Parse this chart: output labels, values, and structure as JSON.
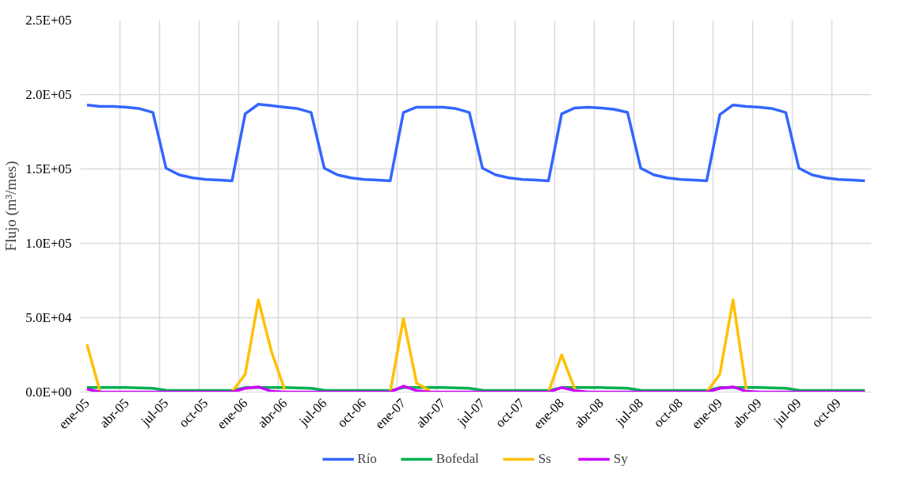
{
  "chart_data": {
    "type": "line",
    "ylabel": "Flujo (m³/mes)",
    "categories": [
      "ene-05",
      null,
      null,
      "abr-05",
      null,
      null,
      "jul-05",
      null,
      null,
      "oct-05",
      null,
      null,
      "ene-06",
      null,
      null,
      "abr-06",
      null,
      null,
      "jul-06",
      null,
      null,
      "oct-06",
      null,
      null,
      "ene-07",
      null,
      null,
      "abr-07",
      null,
      null,
      "jul-07",
      null,
      null,
      "oct-07",
      null,
      null,
      "ene-08",
      null,
      null,
      "abr-08",
      null,
      null,
      "jul-08",
      null,
      null,
      "oct-08",
      null,
      null,
      "ene-09",
      null,
      null,
      "abr-09",
      null,
      null,
      "jul-09",
      null,
      null,
      "oct-09",
      null,
      null
    ],
    "series": [
      {
        "name": "Río",
        "color": "#3366ff",
        "values": [
          193000,
          192000,
          192000,
          191500,
          190500,
          188000,
          150500,
          146000,
          144000,
          143000,
          142500,
          142000,
          187000,
          193500,
          192500,
          191500,
          190500,
          188000,
          150500,
          146000,
          144000,
          143000,
          142500,
          142000,
          188000,
          191500,
          191500,
          191500,
          190500,
          188000,
          150500,
          146000,
          144000,
          143000,
          142500,
          142000,
          187000,
          191000,
          191500,
          191000,
          190000,
          188000,
          150500,
          146000,
          144000,
          143000,
          142500,
          142000,
          186500,
          193000,
          192000,
          191500,
          190500,
          188000,
          150500,
          146000,
          144000,
          143000,
          142500,
          142000
        ]
      },
      {
        "name": "Bofedal",
        "color": "#00b050",
        "values": [
          3000,
          3000,
          3000,
          3000,
          2800,
          2500,
          1200,
          1000,
          1000,
          1000,
          1000,
          1000,
          3000,
          3000,
          3000,
          3000,
          2800,
          2500,
          1200,
          1000,
          1000,
          1000,
          1000,
          1000,
          3000,
          3000,
          3000,
          3000,
          2800,
          2500,
          1200,
          1000,
          1000,
          1000,
          1000,
          1000,
          3000,
          3000,
          3000,
          3000,
          2800,
          2500,
          1200,
          1000,
          1000,
          1000,
          1000,
          1000,
          3000,
          3000,
          3000,
          3000,
          2800,
          2500,
          1200,
          1000,
          1000,
          1000,
          1000,
          1000
        ]
      },
      {
        "name": "Ss",
        "color": "#ffc000",
        "values": [
          32000,
          0,
          null,
          null,
          null,
          null,
          null,
          null,
          null,
          null,
          null,
          0,
          12000,
          62000,
          27000,
          1500,
          null,
          null,
          null,
          null,
          null,
          null,
          null,
          0,
          49500,
          6000,
          1000,
          null,
          null,
          null,
          null,
          null,
          null,
          null,
          null,
          0,
          25000,
          2000,
          null,
          null,
          null,
          null,
          null,
          null,
          null,
          null,
          null,
          0,
          12000,
          62000,
          2000,
          null,
          null,
          null,
          null,
          null,
          null,
          null,
          null,
          null
        ]
      },
      {
        "name": "Sy",
        "color": "#cc00ff",
        "values": [
          2000,
          0,
          0,
          0,
          0,
          0,
          0,
          0,
          0,
          0,
          0,
          0,
          2500,
          3500,
          500,
          0,
          0,
          0,
          0,
          0,
          0,
          0,
          0,
          0,
          4000,
          1000,
          0,
          0,
          0,
          0,
          0,
          0,
          0,
          0,
          0,
          0,
          3000,
          1000,
          0,
          0,
          0,
          0,
          0,
          0,
          0,
          0,
          0,
          0,
          2500,
          3500,
          500,
          0,
          0,
          0,
          0,
          0,
          0,
          0,
          0,
          0
        ]
      }
    ],
    "ylim": [
      0,
      250000
    ],
    "yticks": [
      {
        "value": 0,
        "label": "0.0E+00"
      },
      {
        "value": 50000,
        "label": "5.0E+04"
      },
      {
        "value": 100000,
        "label": "1.0E+05"
      },
      {
        "value": 150000,
        "label": "1.5E+05"
      },
      {
        "value": 200000,
        "label": "2.0E+05"
      },
      {
        "value": 250000,
        "label": "2.5E+05"
      }
    ],
    "grid": true,
    "legend": "bottom",
    "marker": "none",
    "line_style": "solid"
  }
}
